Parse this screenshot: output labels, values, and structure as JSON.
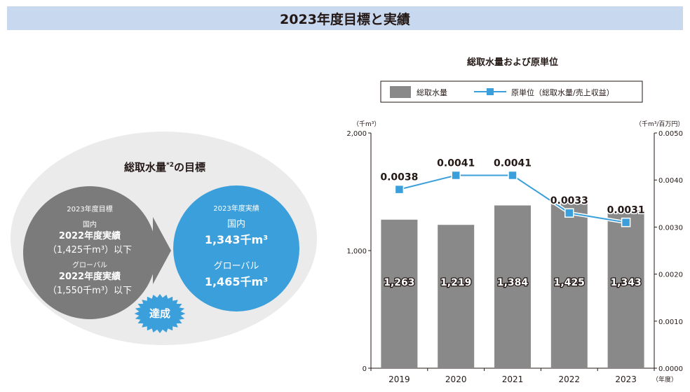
{
  "page_title": "2023年度目標と実績",
  "left": {
    "heading": "総取水量",
    "heading_sup": "*2",
    "heading_suffix": "の目標",
    "goal": {
      "label": "2023年度目標",
      "domestic_label": "国内",
      "domestic_line1": "2022年度実績",
      "domestic_line2": "（1,425千m³）以下",
      "global_label": "グローバル",
      "global_line1": "2022年度実績",
      "global_line2": "（1,550千m³）以下"
    },
    "actual": {
      "label": "2023年度実績",
      "domestic_label": "国内",
      "domestic_value": "1,343千m³",
      "global_label": "グローバル",
      "global_value": "1,465千m³"
    },
    "badge": "達成",
    "colors": {
      "goal": "#7b7b7b",
      "actual": "#3a9fda",
      "badge": "#3a9fda",
      "ellipse": "#ebebeb"
    }
  },
  "chart_data": {
    "type": "bar",
    "title": "総取水量および原単位",
    "categories": [
      "2019",
      "2020",
      "2021",
      "2022",
      "2023"
    ],
    "x_unit": "（年度）",
    "series": [
      {
        "name": "総取水量",
        "type": "bar",
        "axis": "left",
        "color": "#898989",
        "values": [
          1263,
          1219,
          1384,
          1425,
          1343
        ],
        "labels": [
          "1,263",
          "1,219",
          "1,384",
          "1,425",
          "1,343"
        ]
      },
      {
        "name": "原単位（総取水量/売上収益）",
        "type": "line",
        "axis": "right",
        "color": "#3a9fda",
        "values": [
          0.0038,
          0.0041,
          0.0041,
          0.0033,
          0.0031
        ],
        "labels": [
          "0.0038",
          "0.0041",
          "0.0041",
          "0.0033",
          "0.0031"
        ]
      }
    ],
    "y_left": {
      "unit": "（千m³）",
      "ylim": [
        0,
        2000
      ],
      "ticks": [
        "0",
        "1,000",
        "2,000"
      ],
      "tick_values": [
        0,
        1000,
        2000
      ]
    },
    "y_right": {
      "unit": "（千m³/百万円）",
      "ylim": [
        0,
        0.005
      ],
      "ticks": [
        "0.0000",
        "0.0010",
        "0.0020",
        "0.0030",
        "0.0040",
        "0.0050"
      ],
      "tick_values": [
        0,
        0.001,
        0.002,
        0.003,
        0.004,
        0.005
      ]
    },
    "legend_position": "top",
    "grid": false
  }
}
